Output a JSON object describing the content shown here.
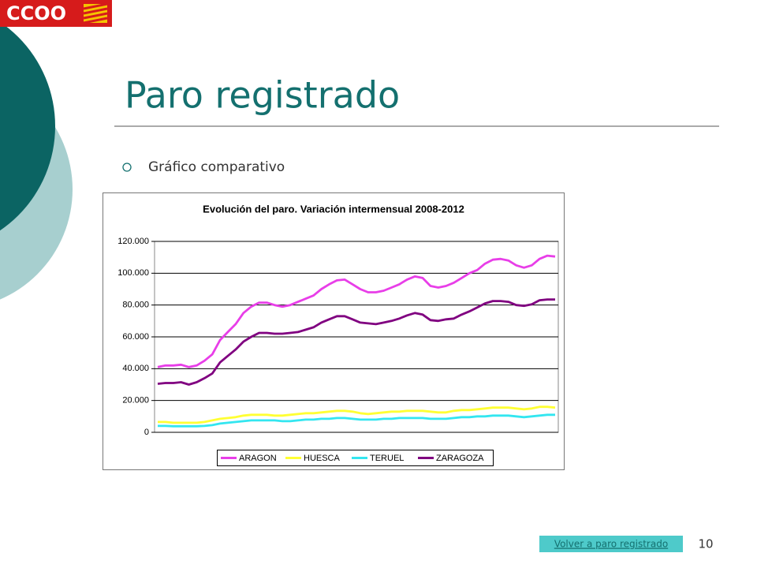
{
  "logo": "CCOO",
  "slide_title": "Paro registrado",
  "bullet": "Gráfico comparativo",
  "link": "Volver a paro registrado",
  "page_number": "10",
  "chart_data": {
    "type": "line",
    "title": "Evolución del paro. Variación intermensual 2008-2012",
    "ylim": [
      0,
      120000
    ],
    "yticks": [
      0,
      {
        "value": 20000,
        "label": "20.000"
      },
      {
        "value": 40000,
        "label": "40.000"
      },
      {
        "value": 60000,
        "label": "60.000"
      },
      {
        "value": 80000,
        "label": "80.000"
      },
      {
        "value": 100000,
        "label": "100.000"
      },
      {
        "value": 120000,
        "label": "120.000"
      }
    ],
    "grid": true,
    "legend": "bottom",
    "series": [
      {
        "name": "ARAGON",
        "color": "#e83ee8",
        "values": [
          41000,
          42000,
          42000,
          42500,
          41000,
          42000,
          45000,
          49000,
          58000,
          63000,
          68000,
          75000,
          79000,
          81500,
          81500,
          80000,
          79000,
          80000,
          82000,
          84000,
          86000,
          90000,
          93000,
          95500,
          96000,
          93000,
          90000,
          88000,
          88000,
          89000,
          91000,
          93000,
          96000,
          98000,
          97000,
          92000,
          91000,
          92000,
          94000,
          97000,
          100000,
          102000,
          106000,
          108500,
          109000,
          108000,
          105000,
          103500,
          105000,
          109000,
          111000,
          110500
        ]
      },
      {
        "name": "HUESCA",
        "color": "#ffff33",
        "values": [
          6500,
          6500,
          6000,
          6000,
          6000,
          6000,
          6500,
          7500,
          8500,
          9000,
          9500,
          10500,
          11000,
          11000,
          11000,
          10500,
          10500,
          11000,
          11500,
          12000,
          12000,
          12500,
          13000,
          13500,
          13500,
          13000,
          12000,
          11500,
          12000,
          12500,
          13000,
          13000,
          13500,
          13500,
          13500,
          13000,
          12500,
          12500,
          13500,
          14000,
          14000,
          14500,
          15000,
          15500,
          15500,
          15500,
          15000,
          14500,
          15000,
          16000,
          16000,
          15500
        ]
      },
      {
        "name": "TERUEL",
        "color": "#33e6f0",
        "values": [
          4000,
          4000,
          3800,
          3800,
          3800,
          3800,
          4000,
          4500,
          5500,
          6000,
          6500,
          7000,
          7500,
          7500,
          7500,
          7500,
          7000,
          7000,
          7500,
          8000,
          8000,
          8500,
          8500,
          9000,
          9000,
          8500,
          8000,
          8000,
          8000,
          8500,
          8500,
          9000,
          9000,
          9000,
          9000,
          8500,
          8500,
          8500,
          9000,
          9500,
          9500,
          10000,
          10000,
          10500,
          10500,
          10500,
          10000,
          9500,
          10000,
          10500,
          11000,
          11000
        ]
      },
      {
        "name": "ZARAGOZA",
        "color": "#800080",
        "values": [
          30500,
          31000,
          31000,
          31500,
          30000,
          31500,
          34000,
          37000,
          44000,
          48000,
          52000,
          57000,
          60000,
          62500,
          62500,
          62000,
          62000,
          62500,
          63000,
          64500,
          66000,
          69000,
          71000,
          73000,
          73000,
          71000,
          69000,
          68500,
          68000,
          69000,
          70000,
          71500,
          73500,
          75000,
          74000,
          70500,
          70000,
          71000,
          71500,
          74000,
          76000,
          78500,
          81000,
          82500,
          82500,
          82000,
          80000,
          79500,
          80500,
          83000,
          83500,
          83500
        ]
      }
    ]
  }
}
